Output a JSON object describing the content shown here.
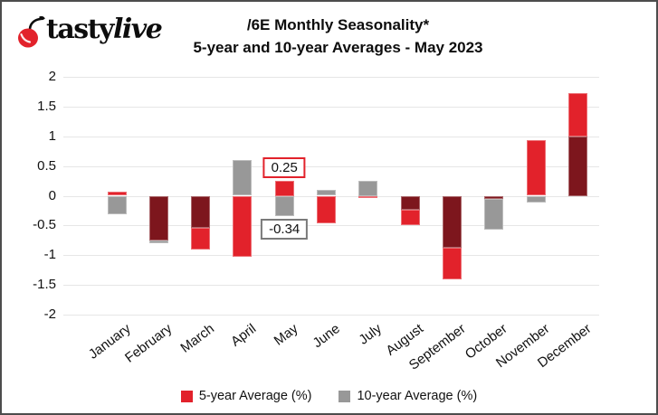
{
  "logo": {
    "brand_bold": "tasty",
    "brand_italic": "live"
  },
  "title": {
    "line1": "/6E Monthly Seasonality*",
    "line2": "5-year and 10-year Averages - May 2023"
  },
  "colors": {
    "five_year": "#e2222b",
    "ten_year": "#989898",
    "overlap": "#7d161d",
    "gridline": "#e6e6e6",
    "frame_border": "#4d4d4d",
    "text": "#111111",
    "annotation_positive_border": "#e2222b",
    "annotation_negative_border": "#7a7a7a"
  },
  "chart_data": {
    "type": "bar",
    "overlay": true,
    "title": "/6E Monthly Seasonality* 5-year and 10-year Averages - May 2023",
    "categories": [
      "January",
      "February",
      "March",
      "April",
      "May",
      "June",
      "July",
      "August",
      "September",
      "October",
      "November",
      "December"
    ],
    "series": [
      {
        "name": "5-year Average (%)",
        "color_key": "five_year",
        "values": [
          0.07,
          -0.76,
          -0.9,
          -1.02,
          0.25,
          -0.47,
          -0.04,
          -0.49,
          -1.4,
          -0.05,
          0.94,
          1.72
        ]
      },
      {
        "name": "10-year Average (%)",
        "color_key": "ten_year",
        "values": [
          -0.31,
          -0.8,
          -0.54,
          0.6,
          -0.34,
          0.1,
          0.25,
          -0.24,
          -0.88,
          -0.57,
          -0.12,
          1.0
        ]
      }
    ],
    "ylim": [
      -2,
      2
    ],
    "yticks": [
      "2",
      "1.5",
      "1",
      "0.5",
      "0",
      "-0.5",
      "-1",
      "-1.5",
      "-2"
    ],
    "grid": true,
    "legend_position": "bottom",
    "annotations": [
      {
        "text": "0.25",
        "month_index": 4,
        "series": 0,
        "placement": "above",
        "border_key": "annotation_positive_border"
      },
      {
        "text": "-0.34",
        "month_index": 4,
        "series": 1,
        "placement": "below",
        "border_key": "annotation_negative_border"
      }
    ]
  }
}
